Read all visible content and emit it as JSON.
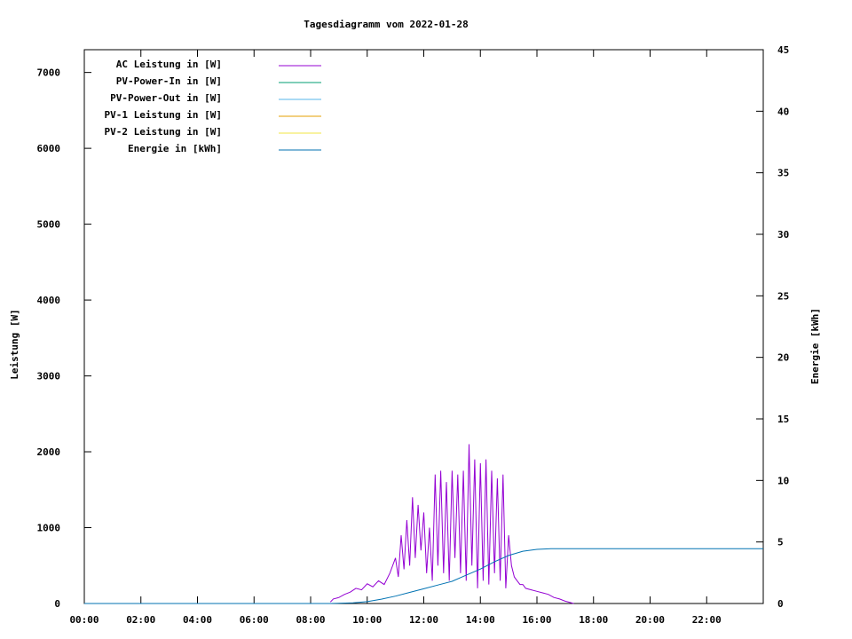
{
  "chart_data": {
    "type": "line",
    "title": "Tagesdiagramm vom 2022-01-28",
    "ylabel": "Leistung [W]",
    "y2label": "Energie [kWh]",
    "xlim": [
      0,
      24
    ],
    "ylim": [
      0,
      7300
    ],
    "y2lim": [
      0,
      45
    ],
    "x_ticks": [
      "00:00",
      "02:00",
      "04:00",
      "06:00",
      "08:00",
      "10:00",
      "12:00",
      "14:00",
      "16:00",
      "18:00",
      "20:00",
      "22:00"
    ],
    "y_ticks": [
      0,
      1000,
      2000,
      3000,
      4000,
      5000,
      6000,
      7000
    ],
    "y2_ticks": [
      0,
      5,
      10,
      15,
      20,
      25,
      30,
      35,
      40,
      45
    ],
    "legend_position": "top-left",
    "legend": [
      {
        "name": "AC Leistung in [W]",
        "color": "#9400d3"
      },
      {
        "name": "PV-Power-In in [W]",
        "color": "#009e73"
      },
      {
        "name": "PV-Power-Out in [W]",
        "color": "#56b4e9"
      },
      {
        "name": "PV-1 Leistung in [W]",
        "color": "#e69f00"
      },
      {
        "name": "PV-2 Leistung in [W]",
        "color": "#f0e442"
      },
      {
        "name": "Energie in [kWh]",
        "color": "#0072b2"
      }
    ],
    "series": [
      {
        "name": "AC Leistung in [W]",
        "axis": "y",
        "color": "#9400d3",
        "x": [
          8.7,
          8.8,
          9.0,
          9.2,
          9.4,
          9.6,
          9.8,
          10.0,
          10.2,
          10.4,
          10.6,
          10.8,
          11.0,
          11.1,
          11.2,
          11.3,
          11.4,
          11.5,
          11.6,
          11.7,
          11.8,
          11.9,
          12.0,
          12.1,
          12.2,
          12.3,
          12.4,
          12.5,
          12.6,
          12.7,
          12.8,
          12.9,
          13.0,
          13.1,
          13.2,
          13.3,
          13.4,
          13.5,
          13.6,
          13.7,
          13.8,
          13.9,
          14.0,
          14.1,
          14.2,
          14.3,
          14.4,
          14.5,
          14.6,
          14.7,
          14.8,
          14.9,
          15.0,
          15.1,
          15.2,
          15.3,
          15.4,
          15.5,
          15.6,
          15.8,
          16.0,
          16.2,
          16.4,
          16.6,
          16.8,
          17.0,
          17.2,
          17.3
        ],
        "y": [
          20,
          60,
          80,
          120,
          150,
          200,
          180,
          260,
          220,
          300,
          250,
          400,
          600,
          350,
          900,
          450,
          1100,
          500,
          1400,
          600,
          1300,
          700,
          1200,
          400,
          1000,
          300,
          1700,
          500,
          1750,
          400,
          1600,
          300,
          1750,
          600,
          1700,
          400,
          1750,
          300,
          2100,
          500,
          1900,
          200,
          1850,
          300,
          1900,
          250,
          1750,
          400,
          1650,
          300,
          1700,
          200,
          900,
          500,
          350,
          300,
          250,
          250,
          200,
          180,
          160,
          140,
          120,
          80,
          60,
          30,
          10,
          0
        ]
      },
      {
        "name": "Energie in [kWh]",
        "axis": "y2",
        "color": "#0072b2",
        "x": [
          0,
          8.7,
          9.5,
          10.0,
          10.5,
          11.0,
          11.5,
          12.0,
          12.5,
          13.0,
          13.5,
          14.0,
          14.5,
          15.0,
          15.5,
          16.0,
          16.5,
          17.0,
          24.0
        ],
        "y": [
          0,
          0,
          0.05,
          0.15,
          0.35,
          0.6,
          0.9,
          1.2,
          1.5,
          1.8,
          2.3,
          2.8,
          3.4,
          3.9,
          4.25,
          4.4,
          4.45,
          4.45,
          4.45
        ]
      }
    ]
  }
}
